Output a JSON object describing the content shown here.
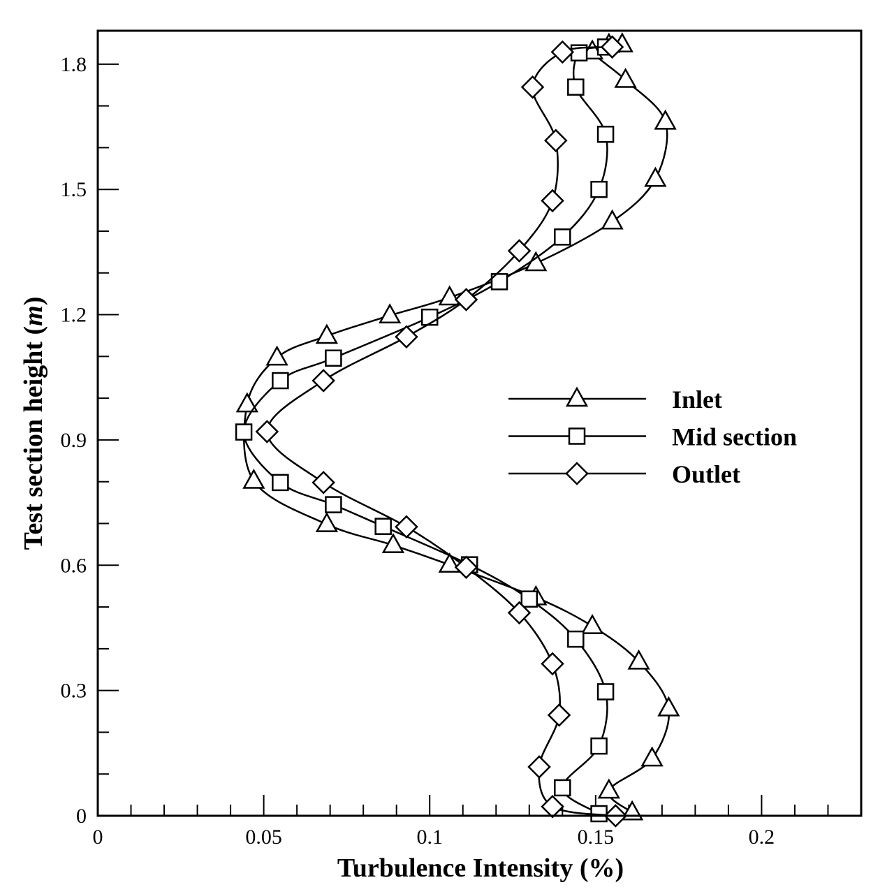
{
  "chart_data": {
    "type": "line",
    "xlabel": "Turbulence Intensity (%)",
    "ylabel_main": "Test section height (",
    "ylabel_unit": "m",
    "ylabel_close": ")",
    "xlim": [
      0,
      0.23
    ],
    "ylim": [
      0,
      1.88
    ],
    "x_ticks": [
      "0",
      "0.05",
      "0.1",
      "0.15",
      "0.2"
    ],
    "x_tick_values": [
      0,
      0.05,
      0.1,
      0.15,
      0.2
    ],
    "y_ticks": [
      "0",
      "0.3",
      "0.6",
      "0.9",
      "1.2",
      "1.5",
      "1.8"
    ],
    "y_tick_values": [
      0,
      0.3,
      0.6,
      0.9,
      1.2,
      1.5,
      1.8
    ],
    "grid": false,
    "legend_position": "center-right",
    "series": [
      {
        "name": "Inlet",
        "marker": "triangle",
        "x": [
          0.161,
          0.154,
          0.167,
          0.172,
          0.163,
          0.149,
          0.132,
          0.106,
          0.089,
          0.069,
          0.047,
          0.045,
          0.054,
          0.069,
          0.088,
          0.106,
          0.132,
          0.155,
          0.168,
          0.171,
          0.159,
          0.149,
          0.154,
          0.158
        ],
        "y": [
          0.008,
          0.06,
          0.137,
          0.257,
          0.369,
          0.454,
          0.523,
          0.601,
          0.648,
          0.698,
          0.802,
          0.985,
          1.097,
          1.149,
          1.198,
          1.241,
          1.323,
          1.423,
          1.525,
          1.662,
          1.762,
          1.83,
          1.846,
          1.847
        ]
      },
      {
        "name": "Mid section",
        "marker": "square",
        "x": [
          0.151,
          0.14,
          0.151,
          0.153,
          0.144,
          0.13,
          0.112,
          0.086,
          0.071,
          0.055,
          0.044,
          0.055,
          0.071,
          0.1,
          0.121,
          0.14,
          0.151,
          0.153,
          0.144,
          0.145,
          0.153
        ],
        "y": [
          0.005,
          0.067,
          0.167,
          0.297,
          0.423,
          0.519,
          0.601,
          0.693,
          0.745,
          0.798,
          0.919,
          1.042,
          1.096,
          1.194,
          1.279,
          1.386,
          1.5,
          1.632,
          1.745,
          1.827,
          1.841
        ]
      },
      {
        "name": "Outlet",
        "marker": "diamond",
        "x": [
          0.156,
          0.137,
          0.133,
          0.139,
          0.137,
          0.127,
          0.111,
          0.093,
          0.068,
          0.051,
          0.068,
          0.093,
          0.111,
          0.127,
          0.137,
          0.138,
          0.131,
          0.14,
          0.155
        ],
        "y": [
          0.0,
          0.022,
          0.117,
          0.241,
          0.364,
          0.486,
          0.595,
          0.692,
          0.798,
          0.92,
          1.042,
          1.147,
          1.236,
          1.353,
          1.473,
          1.617,
          1.745,
          1.829,
          1.841
        ]
      }
    ]
  }
}
